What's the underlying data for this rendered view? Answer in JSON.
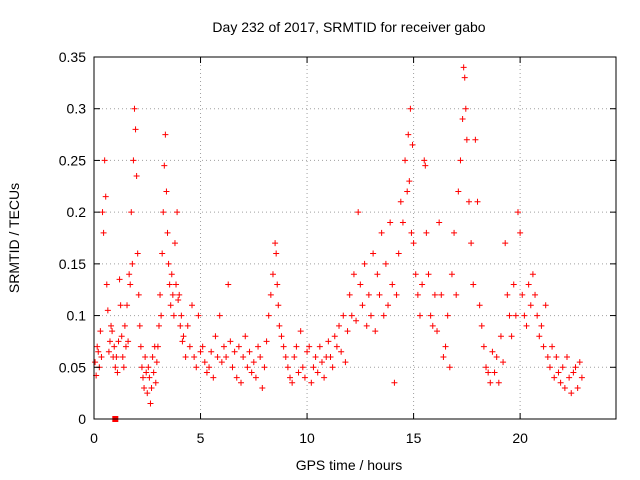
{
  "chart_data": {
    "type": "scatter",
    "title": "Day 232 of 2017, SRMTID for receiver gabo",
    "xlabel": "GPS time / hours",
    "ylabel": "SRMTID / TECUs",
    "xlim": [
      0,
      24.5
    ],
    "ylim": [
      0,
      0.35
    ],
    "xticks": [
      0,
      5,
      10,
      15,
      20
    ],
    "xtick_labels": [
      "0",
      "5",
      "10",
      "15",
      "20"
    ],
    "yticks": [
      0,
      0.05,
      0.1,
      0.15,
      0.2,
      0.25,
      0.3,
      0.35
    ],
    "ytick_labels": [
      "0",
      "0.05",
      "0.1",
      "0.15",
      "0.2",
      "0.25",
      "0.3",
      "0.35"
    ],
    "grid": true,
    "marker": "plus",
    "color": "#ff0000",
    "series": [
      {
        "name": "SRMTID",
        "points": [
          [
            0.05,
            0.055
          ],
          [
            0.1,
            0.042
          ],
          [
            0.15,
            0.07
          ],
          [
            0.2,
            0.065
          ],
          [
            0.25,
            0.05
          ],
          [
            0.3,
            0.085
          ],
          [
            0.35,
            0.06
          ],
          [
            0.4,
            0.2
          ],
          [
            0.45,
            0.18
          ],
          [
            0.5,
            0.25
          ],
          [
            0.55,
            0.215
          ],
          [
            0.6,
            0.13
          ],
          [
            0.65,
            0.105
          ],
          [
            0.7,
            0.065
          ],
          [
            0.75,
            0.075
          ],
          [
            0.8,
            0.09
          ],
          [
            0.85,
            0.085
          ],
          [
            0.9,
            0.06
          ],
          [
            0.95,
            0.07
          ],
          [
            1.0,
            0.05
          ],
          [
            1.05,
            0.06
          ],
          [
            1.1,
            0.045
          ],
          [
            1.15,
            0.075
          ],
          [
            1.2,
            0.135
          ],
          [
            1.25,
            0.11
          ],
          [
            1.3,
            0.08
          ],
          [
            1.35,
            0.06
          ],
          [
            1.4,
            0.05
          ],
          [
            1.45,
            0.09
          ],
          [
            1.5,
            0.07
          ],
          [
            1.55,
            0.11
          ],
          [
            1.6,
            0.075
          ],
          [
            1.65,
            0.14
          ],
          [
            1.7,
            0.13
          ],
          [
            1.75,
            0.2
          ],
          [
            1.8,
            0.15
          ],
          [
            1.85,
            0.25
          ],
          [
            1.9,
            0.3
          ],
          [
            1.95,
            0.28
          ],
          [
            2.0,
            0.235
          ],
          [
            2.05,
            0.16
          ],
          [
            2.1,
            0.12
          ],
          [
            2.15,
            0.09
          ],
          [
            2.2,
            0.07
          ],
          [
            2.25,
            0.05
          ],
          [
            2.3,
            0.04
          ],
          [
            2.35,
            0.03
          ],
          [
            2.4,
            0.06
          ],
          [
            2.45,
            0.045
          ],
          [
            2.5,
            0.025
          ],
          [
            2.55,
            0.05
          ],
          [
            2.6,
            0.04
          ],
          [
            2.65,
            0.015
          ],
          [
            2.7,
            0.03
          ],
          [
            2.75,
            0.06
          ],
          [
            2.8,
            0.045
          ],
          [
            2.85,
            0.07
          ],
          [
            2.9,
            0.035
          ],
          [
            2.95,
            0.055
          ],
          [
            3.0,
            0.07
          ],
          [
            3.05,
            0.09
          ],
          [
            3.1,
            0.12
          ],
          [
            3.15,
            0.1
          ],
          [
            3.2,
            0.16
          ],
          [
            3.25,
            0.2
          ],
          [
            3.3,
            0.245
          ],
          [
            3.35,
            0.275
          ],
          [
            3.4,
            0.22
          ],
          [
            3.45,
            0.18
          ],
          [
            3.5,
            0.15
          ],
          [
            3.55,
            0.13
          ],
          [
            3.6,
            0.11
          ],
          [
            3.65,
            0.14
          ],
          [
            3.7,
            0.12
          ],
          [
            3.75,
            0.1
          ],
          [
            3.8,
            0.17
          ],
          [
            3.85,
            0.13
          ],
          [
            3.9,
            0.2
          ],
          [
            3.95,
            0.115
          ],
          [
            4.0,
            0.12
          ],
          [
            4.05,
            0.09
          ],
          [
            4.1,
            0.1
          ],
          [
            4.15,
            0.075
          ],
          [
            4.2,
            0.08
          ],
          [
            4.3,
            0.06
          ],
          [
            4.4,
            0.09
          ],
          [
            4.5,
            0.07
          ],
          [
            4.6,
            0.11
          ],
          [
            4.7,
            0.06
          ],
          [
            4.8,
            0.05
          ],
          [
            4.9,
            0.1
          ],
          [
            5.0,
            0.065
          ],
          [
            5.1,
            0.07
          ],
          [
            5.2,
            0.055
          ],
          [
            5.3,
            0.045
          ],
          [
            5.4,
            0.05
          ],
          [
            5.5,
            0.065
          ],
          [
            5.6,
            0.04
          ],
          [
            5.7,
            0.08
          ],
          [
            5.8,
            0.06
          ],
          [
            5.9,
            0.1
          ],
          [
            6.0,
            0.055
          ],
          [
            6.1,
            0.07
          ],
          [
            6.2,
            0.06
          ],
          [
            6.3,
            0.13
          ],
          [
            6.4,
            0.075
          ],
          [
            6.5,
            0.05
          ],
          [
            6.6,
            0.065
          ],
          [
            6.7,
            0.04
          ],
          [
            6.8,
            0.07
          ],
          [
            6.9,
            0.035
          ],
          [
            7.0,
            0.06
          ],
          [
            7.1,
            0.08
          ],
          [
            7.2,
            0.05
          ],
          [
            7.3,
            0.065
          ],
          [
            7.4,
            0.045
          ],
          [
            7.5,
            0.055
          ],
          [
            7.6,
            0.04
          ],
          [
            7.7,
            0.07
          ],
          [
            7.8,
            0.06
          ],
          [
            7.9,
            0.03
          ],
          [
            8.0,
            0.05
          ],
          [
            8.1,
            0.075
          ],
          [
            8.2,
            0.1
          ],
          [
            8.3,
            0.12
          ],
          [
            8.4,
            0.14
          ],
          [
            8.5,
            0.17
          ],
          [
            8.55,
            0.16
          ],
          [
            8.6,
            0.13
          ],
          [
            8.65,
            0.11
          ],
          [
            8.7,
            0.09
          ],
          [
            8.8,
            0.08
          ],
          [
            8.9,
            0.07
          ],
          [
            9.0,
            0.06
          ],
          [
            9.1,
            0.05
          ],
          [
            9.2,
            0.04
          ],
          [
            9.3,
            0.035
          ],
          [
            9.4,
            0.06
          ],
          [
            9.5,
            0.07
          ],
          [
            9.6,
            0.045
          ],
          [
            9.7,
            0.085
          ],
          [
            9.8,
            0.05
          ],
          [
            9.9,
            0.04
          ],
          [
            10.0,
            0.065
          ],
          [
            10.1,
            0.07
          ],
          [
            10.2,
            0.035
          ],
          [
            10.3,
            0.05
          ],
          [
            10.4,
            0.06
          ],
          [
            10.5,
            0.045
          ],
          [
            10.6,
            0.07
          ],
          [
            10.7,
            0.055
          ],
          [
            10.8,
            0.04
          ],
          [
            10.9,
            0.06
          ],
          [
            11.0,
            0.075
          ],
          [
            11.1,
            0.06
          ],
          [
            11.2,
            0.05
          ],
          [
            11.3,
            0.08
          ],
          [
            11.4,
            0.07
          ],
          [
            11.5,
            0.09
          ],
          [
            11.6,
            0.065
          ],
          [
            11.7,
            0.1
          ],
          [
            11.8,
            0.055
          ],
          [
            11.9,
            0.085
          ],
          [
            12.0,
            0.12
          ],
          [
            12.1,
            0.1
          ],
          [
            12.2,
            0.14
          ],
          [
            12.3,
            0.095
          ],
          [
            12.4,
            0.2
          ],
          [
            12.5,
            0.13
          ],
          [
            12.6,
            0.11
          ],
          [
            12.7,
            0.15
          ],
          [
            12.8,
            0.09
          ],
          [
            12.9,
            0.12
          ],
          [
            13.0,
            0.1
          ],
          [
            13.1,
            0.16
          ],
          [
            13.2,
            0.085
          ],
          [
            13.3,
            0.14
          ],
          [
            13.4,
            0.12
          ],
          [
            13.5,
            0.18
          ],
          [
            13.6,
            0.1
          ],
          [
            13.7,
            0.15
          ],
          [
            13.8,
            0.11
          ],
          [
            13.9,
            0.19
          ],
          [
            14.0,
            0.13
          ],
          [
            14.1,
            0.035
          ],
          [
            14.2,
            0.12
          ],
          [
            14.3,
            0.16
          ],
          [
            14.4,
            0.21
          ],
          [
            14.5,
            0.19
          ],
          [
            14.6,
            0.25
          ],
          [
            14.7,
            0.22
          ],
          [
            14.75,
            0.275
          ],
          [
            14.8,
            0.23
          ],
          [
            14.85,
            0.3
          ],
          [
            14.9,
            0.18
          ],
          [
            14.95,
            0.265
          ],
          [
            15.0,
            0.17
          ],
          [
            15.1,
            0.14
          ],
          [
            15.2,
            0.12
          ],
          [
            15.3,
            0.1
          ],
          [
            15.4,
            0.13
          ],
          [
            15.5,
            0.25
          ],
          [
            15.55,
            0.245
          ],
          [
            15.6,
            0.18
          ],
          [
            15.7,
            0.14
          ],
          [
            15.8,
            0.1
          ],
          [
            15.9,
            0.09
          ],
          [
            16.0,
            0.12
          ],
          [
            16.1,
            0.085
          ],
          [
            16.2,
            0.19
          ],
          [
            16.3,
            0.12
          ],
          [
            16.4,
            0.06
          ],
          [
            16.5,
            0.07
          ],
          [
            16.6,
            0.1
          ],
          [
            16.7,
            0.05
          ],
          [
            16.8,
            0.14
          ],
          [
            16.9,
            0.18
          ],
          [
            17.0,
            0.12
          ],
          [
            17.1,
            0.22
          ],
          [
            17.2,
            0.25
          ],
          [
            17.3,
            0.29
          ],
          [
            17.35,
            0.34
          ],
          [
            17.4,
            0.33
          ],
          [
            17.45,
            0.3
          ],
          [
            17.5,
            0.27
          ],
          [
            17.6,
            0.21
          ],
          [
            17.7,
            0.17
          ],
          [
            17.8,
            0.13
          ],
          [
            17.9,
            0.27
          ],
          [
            18.0,
            0.21
          ],
          [
            18.1,
            0.11
          ],
          [
            18.2,
            0.09
          ],
          [
            18.3,
            0.07
          ],
          [
            18.4,
            0.05
          ],
          [
            18.5,
            0.045
          ],
          [
            18.6,
            0.035
          ],
          [
            18.7,
            0.065
          ],
          [
            18.8,
            0.045
          ],
          [
            18.9,
            0.06
          ],
          [
            19.0,
            0.035
          ],
          [
            19.1,
            0.08
          ],
          [
            19.2,
            0.055
          ],
          [
            19.3,
            0.17
          ],
          [
            19.4,
            0.12
          ],
          [
            19.5,
            0.1
          ],
          [
            19.6,
            0.08
          ],
          [
            19.7,
            0.13
          ],
          [
            19.8,
            0.1
          ],
          [
            19.9,
            0.2
          ],
          [
            20.0,
            0.18
          ],
          [
            20.1,
            0.12
          ],
          [
            20.2,
            0.1
          ],
          [
            20.3,
            0.09
          ],
          [
            20.4,
            0.13
          ],
          [
            20.5,
            0.11
          ],
          [
            20.6,
            0.14
          ],
          [
            20.7,
            0.12
          ],
          [
            20.8,
            0.1
          ],
          [
            20.9,
            0.08
          ],
          [
            21.0,
            0.09
          ],
          [
            21.1,
            0.07
          ],
          [
            21.2,
            0.11
          ],
          [
            21.3,
            0.06
          ],
          [
            21.4,
            0.05
          ],
          [
            21.5,
            0.07
          ],
          [
            21.6,
            0.04
          ],
          [
            21.7,
            0.06
          ],
          [
            21.8,
            0.045
          ],
          [
            21.9,
            0.035
          ],
          [
            22.0,
            0.05
          ],
          [
            22.1,
            0.03
          ],
          [
            22.2,
            0.06
          ],
          [
            22.3,
            0.04
          ],
          [
            22.4,
            0.025
          ],
          [
            22.5,
            0.045
          ],
          [
            22.6,
            0.05
          ],
          [
            22.7,
            0.03
          ],
          [
            22.8,
            0.055
          ],
          [
            22.9,
            0.04
          ]
        ]
      }
    ],
    "special_marks": [
      {
        "name": "filled-square",
        "x": 1.0,
        "y": 0.0
      }
    ]
  }
}
